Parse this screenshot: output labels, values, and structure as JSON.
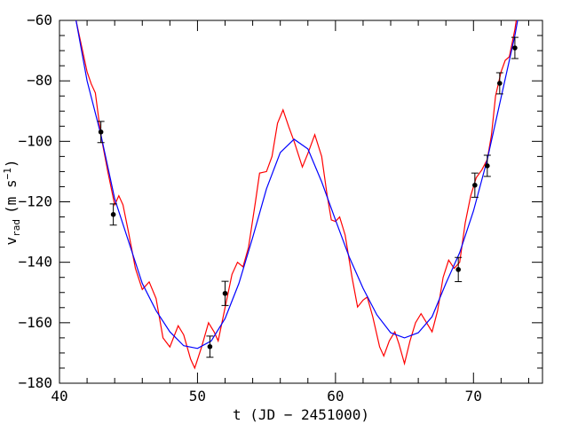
{
  "chart_data": {
    "type": "line",
    "xlabel": "t (JD − 2451000)",
    "ylabel": {
      "main": "v",
      "sub": "rad",
      "unit": "(m s",
      "sup": "−1",
      "close": ")"
    },
    "xlim": [
      40,
      75
    ],
    "ylim": [
      -180,
      -60
    ],
    "xticks": [
      40,
      50,
      60,
      70
    ],
    "yticks": [
      {
        "value": -180,
        "label": "−180"
      },
      {
        "value": -160,
        "label": "−160"
      },
      {
        "value": -140,
        "label": "−140"
      },
      {
        "value": -120,
        "label": "−120"
      },
      {
        "value": -100,
        "label": "−100"
      },
      {
        "value": -80,
        "label": "−80"
      },
      {
        "value": -60,
        "label": "−60"
      }
    ],
    "xminorticks": [
      42,
      44,
      46,
      48,
      52,
      54,
      56,
      58,
      62,
      64,
      66,
      68,
      72,
      74
    ],
    "yminorticks": [
      -175,
      -170,
      -165,
      -155,
      -150,
      -145,
      -135,
      -130,
      -125,
      -115,
      -110,
      -105,
      -95,
      -90,
      -85,
      -75,
      -70,
      -65
    ],
    "series": [
      {
        "type": "line",
        "color": "#ff0000",
        "x": [
          41.2,
          42.0,
          42.3,
          42.6,
          43.0,
          43.5,
          44.0,
          44.3,
          44.6,
          45.0,
          45.5,
          46.0,
          46.5,
          47.0,
          47.5,
          48.0,
          48.6,
          49.0,
          49.5,
          49.8,
          50.3,
          50.8,
          51.2,
          51.5,
          52.0,
          52.5,
          52.9,
          53.3,
          53.7,
          54.2,
          54.5,
          55.0,
          55.4,
          55.8,
          56.2,
          56.6,
          57.0,
          57.6,
          58.0,
          58.5,
          59.0,
          59.4,
          59.7,
          60.0,
          60.3,
          60.7,
          61.2,
          61.6,
          62.0,
          62.3,
          62.7,
          63.2,
          63.5,
          63.9,
          64.3,
          64.6,
          65.0,
          65.4,
          65.8,
          66.2,
          66.6,
          67.0,
          67.4,
          67.8,
          68.2,
          68.6,
          69.0,
          69.4,
          69.8,
          70.2,
          70.6,
          71.0,
          71.3,
          71.6,
          72.0,
          72.3,
          72.6,
          73.0,
          73.1
        ],
        "values": [
          -60,
          -77,
          -81,
          -84,
          -98,
          -110,
          -121,
          -118,
          -121,
          -130,
          -142,
          -149,
          -146.5,
          -152,
          -165,
          -168,
          -161,
          -164,
          -172,
          -175,
          -168,
          -160,
          -163,
          -166,
          -155,
          -144,
          -140,
          -141.5,
          -135,
          -120,
          -110.5,
          -110,
          -105,
          -94,
          -89.6,
          -95,
          -100,
          -108.5,
          -104,
          -97.8,
          -105,
          -118,
          -126,
          -126.5,
          -125,
          -131,
          -145,
          -154.8,
          -152.5,
          -151.5,
          -158,
          -168,
          -171,
          -166,
          -163,
          -167,
          -173.5,
          -166,
          -160,
          -157,
          -160,
          -163,
          -156,
          -145,
          -139.3,
          -142,
          -140,
          -127,
          -118,
          -112,
          -109.5,
          -106,
          -98,
          -85,
          -77,
          -73.2,
          -72,
          -63,
          -60
        ]
      },
      {
        "type": "line",
        "color": "#0000ff",
        "x": [
          41.2,
          42,
          43,
          44,
          45,
          46,
          47,
          48,
          49,
          50,
          51,
          52,
          53,
          54,
          55,
          56,
          57,
          58,
          59,
          60,
          61,
          62,
          63,
          64,
          65,
          66,
          67,
          68,
          69,
          70,
          71,
          72,
          73,
          73.2
        ],
        "values": [
          -60,
          -80,
          -97.8,
          -119,
          -133,
          -147,
          -156,
          -163,
          -167.6,
          -168.5,
          -166,
          -158.6,
          -147,
          -131.8,
          -115.7,
          -103.7,
          -99.3,
          -102.5,
          -113.4,
          -126,
          -138.3,
          -148.6,
          -157.4,
          -163.3,
          -165,
          -163.3,
          -158,
          -147,
          -136.8,
          -123,
          -106,
          -85.5,
          -65,
          -60
        ]
      },
      {
        "type": "scatter",
        "color": "#000000",
        "x": [
          43.0,
          43.9,
          50.9,
          52.0,
          68.9,
          70.1,
          71.0,
          71.9,
          73.0
        ],
        "values": [
          -96.9,
          -124.2,
          -167.9,
          -150.3,
          -142.4,
          -114.5,
          -108.1,
          -80.8,
          -69.1
        ],
        "errors": [
          3.5,
          3.5,
          3.5,
          4,
          4,
          4,
          3.5,
          3.5,
          3.5
        ]
      }
    ]
  }
}
